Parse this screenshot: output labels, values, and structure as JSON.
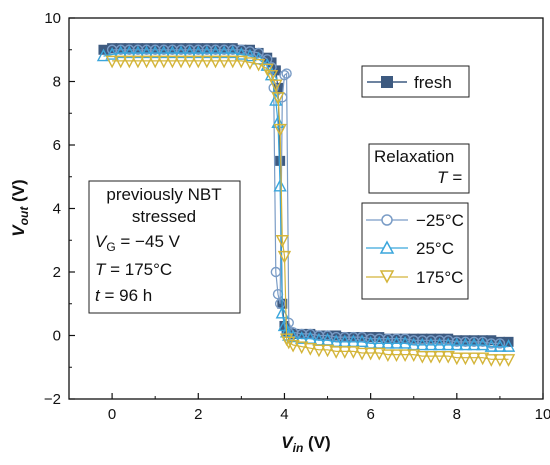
{
  "chart_data": {
    "type": "line",
    "xlabel": {
      "main": "V",
      "sub": "in",
      "unit": " (V)"
    },
    "ylabel": {
      "main": "V",
      "sub": "out",
      "unit": " (V)"
    },
    "xlim": [
      -1,
      10
    ],
    "ylim": [
      -2,
      10
    ],
    "xticks": [
      "0",
      "2",
      "4",
      "6",
      "8",
      "10"
    ],
    "yticks": [
      "−2",
      "0",
      "2",
      "4",
      "6",
      "8",
      "10"
    ],
    "grid": false,
    "series": [
      {
        "name": "fresh",
        "marker": "square-filled",
        "color": "#3d5a80",
        "x": [
          -0.2,
          0.0,
          0.2,
          0.4,
          0.6,
          0.8,
          1.0,
          1.2,
          1.4,
          1.6,
          1.8,
          2.0,
          2.2,
          2.4,
          2.6,
          2.8,
          3.0,
          3.2,
          3.4,
          3.6,
          3.7,
          3.8,
          3.85,
          3.9,
          3.95,
          4.0,
          4.05,
          4.1,
          4.2,
          4.4,
          4.6,
          4.8,
          5.0,
          5.2,
          5.4,
          5.6,
          5.8,
          6.0,
          6.2,
          6.4,
          6.6,
          6.8,
          7.0,
          7.2,
          7.4,
          7.6,
          7.8,
          8.0,
          8.2,
          8.4,
          8.6,
          8.8,
          9.0,
          9.2
        ],
        "y": [
          9.0,
          9.05,
          9.05,
          9.05,
          9.05,
          9.05,
          9.05,
          9.05,
          9.05,
          9.05,
          9.05,
          9.05,
          9.05,
          9.05,
          9.05,
          9.05,
          9.0,
          9.0,
          8.9,
          8.75,
          8.6,
          8.35,
          7.8,
          5.5,
          1.0,
          0.3,
          0.15,
          0.1,
          0.05,
          0.05,
          0.05,
          0.0,
          0.0,
          0.0,
          -0.05,
          -0.05,
          -0.05,
          -0.05,
          -0.05,
          -0.1,
          -0.1,
          -0.1,
          -0.1,
          -0.1,
          -0.1,
          -0.1,
          -0.1,
          -0.15,
          -0.15,
          -0.15,
          -0.15,
          -0.15,
          -0.2,
          -0.2
        ]
      },
      {
        "name": "−25°C",
        "marker": "circle-open",
        "color": "#7a9cc6",
        "x": [
          0.0,
          0.2,
          0.4,
          0.6,
          0.8,
          1.0,
          1.2,
          1.4,
          1.6,
          1.8,
          2.0,
          2.2,
          2.4,
          2.6,
          2.8,
          3.0,
          3.2,
          3.4,
          3.6,
          3.7,
          3.75,
          3.8,
          3.85,
          3.9,
          3.95,
          4.0,
          4.05,
          4.1,
          4.2,
          4.4,
          4.6,
          4.8,
          5.0,
          5.2,
          5.4,
          5.6,
          5.8,
          6.0,
          6.2,
          6.4,
          6.6,
          6.8,
          7.0,
          7.2,
          7.4,
          7.6,
          7.8,
          8.0,
          8.2,
          8.4,
          8.6,
          8.8,
          9.0
        ],
        "y": [
          9.0,
          9.0,
          9.0,
          9.0,
          9.0,
          9.0,
          9.0,
          9.0,
          9.0,
          9.0,
          9.0,
          9.0,
          9.0,
          9.0,
          9.0,
          9.0,
          8.95,
          8.9,
          8.7,
          8.45,
          7.8,
          2.0,
          1.3,
          1.0,
          7.5,
          8.2,
          8.25,
          0.4,
          0.1,
          0.05,
          0.05,
          0.0,
          0.0,
          -0.05,
          -0.05,
          -0.05,
          -0.05,
          -0.1,
          -0.1,
          -0.1,
          -0.1,
          -0.1,
          -0.15,
          -0.15,
          -0.15,
          -0.15,
          -0.15,
          -0.2,
          -0.2,
          -0.2,
          -0.2,
          -0.25,
          -0.25
        ]
      },
      {
        "name": "25°C",
        "marker": "triangle-up-open",
        "color": "#3aa6dc",
        "x": [
          -0.2,
          0.0,
          0.2,
          0.4,
          0.6,
          0.8,
          1.0,
          1.2,
          1.4,
          1.6,
          1.8,
          2.0,
          2.2,
          2.4,
          2.6,
          2.8,
          3.0,
          3.2,
          3.4,
          3.6,
          3.7,
          3.8,
          3.85,
          3.9,
          3.95,
          4.0,
          4.05,
          4.1,
          4.2,
          4.4,
          4.6,
          4.8,
          5.0,
          5.2,
          5.4,
          5.6,
          5.8,
          6.0,
          6.2,
          6.4,
          6.6,
          6.8,
          7.0,
          7.2,
          7.4,
          7.6,
          7.8,
          8.0,
          8.2,
          8.4,
          8.6,
          8.8,
          9.0,
          9.2
        ],
        "y": [
          8.8,
          8.85,
          8.9,
          8.9,
          8.9,
          8.9,
          8.9,
          8.9,
          8.9,
          8.9,
          8.9,
          8.9,
          8.9,
          8.9,
          8.9,
          8.9,
          8.85,
          8.8,
          8.7,
          8.5,
          8.2,
          7.4,
          6.7,
          4.7,
          0.7,
          0.3,
          0.1,
          0.0,
          -0.05,
          -0.1,
          -0.1,
          -0.15,
          -0.15,
          -0.2,
          -0.2,
          -0.2,
          -0.2,
          -0.25,
          -0.25,
          -0.25,
          -0.25,
          -0.25,
          -0.3,
          -0.3,
          -0.3,
          -0.3,
          -0.3,
          -0.3,
          -0.3,
          -0.3,
          -0.3,
          -0.35,
          -0.35,
          -0.35
        ]
      },
      {
        "name": "175°C",
        "marker": "triangle-down-open",
        "color": "#d4b53a",
        "x": [
          0.0,
          0.2,
          0.4,
          0.6,
          0.8,
          1.0,
          1.2,
          1.4,
          1.6,
          1.8,
          2.0,
          2.2,
          2.4,
          2.6,
          2.8,
          3.0,
          3.2,
          3.4,
          3.6,
          3.7,
          3.8,
          3.85,
          3.9,
          3.95,
          4.0,
          4.05,
          4.1,
          4.2,
          4.4,
          4.6,
          4.8,
          5.0,
          5.2,
          5.4,
          5.6,
          5.8,
          6.0,
          6.2,
          6.4,
          6.6,
          6.8,
          7.0,
          7.2,
          7.4,
          7.6,
          7.8,
          8.0,
          8.2,
          8.4,
          8.6,
          8.8,
          9.0,
          9.2
        ],
        "y": [
          8.65,
          8.65,
          8.65,
          8.65,
          8.65,
          8.65,
          8.65,
          8.65,
          8.65,
          8.65,
          8.65,
          8.65,
          8.65,
          8.65,
          8.65,
          8.65,
          8.6,
          8.55,
          8.4,
          8.2,
          7.9,
          7.5,
          6.5,
          3.0,
          2.5,
          -0.1,
          -0.2,
          -0.3,
          -0.35,
          -0.4,
          -0.45,
          -0.45,
          -0.5,
          -0.5,
          -0.5,
          -0.55,
          -0.55,
          -0.55,
          -0.6,
          -0.6,
          -0.6,
          -0.6,
          -0.65,
          -0.65,
          -0.65,
          -0.65,
          -0.7,
          -0.7,
          -0.7,
          -0.7,
          -0.75,
          -0.75,
          -0.75
        ]
      }
    ],
    "legend_fresh": {
      "label": "fresh",
      "placement": "top-right"
    },
    "legend_relaxation": {
      "title_line1": "Relaxation",
      "title_line2": "T =",
      "placement": "right",
      "entries": [
        "−25°C",
        "25°C",
        "175°C"
      ]
    },
    "annotation": {
      "line1": "previously NBT",
      "line2": "stressed",
      "line3_var": "V",
      "line3_sub": "G",
      "line3_rest": " = −45 V",
      "line4_var": "T",
      "line4_rest": " = 175°C",
      "line5_var": "t",
      "line5_rest": " = 96 h",
      "placement": "left-middle"
    }
  }
}
